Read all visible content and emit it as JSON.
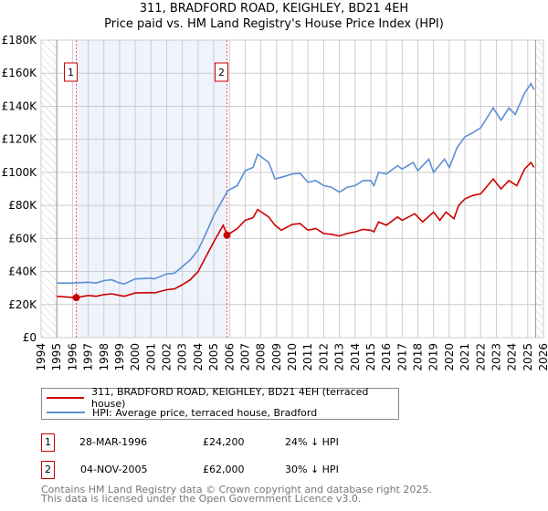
{
  "chart_data": {
    "type": "line",
    "title": "311, BRADFORD ROAD, KEIGHLEY, BD21 4EH",
    "subtitle": "Price paid vs. HM Land Registry's House Price Index (HPI)",
    "xlim": [
      1994,
      2026
    ],
    "ylim": [
      0,
      180000
    ],
    "y_ticks": [
      {
        "v": 0,
        "label": "£0"
      },
      {
        "v": 20000,
        "label": "£20K"
      },
      {
        "v": 40000,
        "label": "£40K"
      },
      {
        "v": 60000,
        "label": "£60K"
      },
      {
        "v": 80000,
        "label": "£80K"
      },
      {
        "v": 100000,
        "label": "£100K"
      },
      {
        "v": 120000,
        "label": "£120K"
      },
      {
        "v": 140000,
        "label": "£140K"
      },
      {
        "v": 160000,
        "label": "£160K"
      },
      {
        "v": 180000,
        "label": "£180K"
      }
    ],
    "x_ticks": [
      "1994",
      "1995",
      "1996",
      "1997",
      "1998",
      "1999",
      "2000",
      "2001",
      "2002",
      "2003",
      "2004",
      "2005",
      "2006",
      "2007",
      "2008",
      "2009",
      "2010",
      "2011",
      "2012",
      "2013",
      "2014",
      "2015",
      "2016",
      "2017",
      "2018",
      "2019",
      "2020",
      "2021",
      "2022",
      "2023",
      "2024",
      "2025",
      "2026"
    ],
    "grid": true,
    "series": [
      {
        "name": "311, BRADFORD ROAD, KEIGHLEY, BD21 4EH (terraced house)",
        "color": "#cc0000",
        "x": [
          1995,
          1996.2,
          1997,
          1997.5,
          1998,
          1998.5,
          1999,
          1999.3,
          2000,
          2001,
          2001.2,
          2002,
          2002.5,
          2003,
          2003.5,
          2004,
          2004.5,
          2005,
          2005.6,
          2005.85,
          2006.5,
          2007,
          2007.5,
          2007.8,
          2008.5,
          2008.9,
          2009.3,
          2010,
          2010.5,
          2011,
          2011.5,
          2012,
          2012.5,
          2013,
          2013.5,
          2014,
          2014.5,
          2015,
          2015.2,
          2015.5,
          2016,
          2016.7,
          2017,
          2017.8,
          2018.3,
          2019,
          2019.4,
          2019.8,
          2020.3,
          2020.6,
          2021,
          2021.5,
          2022,
          2022.8,
          2023.3,
          2023.8,
          2024.3,
          2024.8,
          2025.2,
          2025.4
        ],
        "y": [
          25000,
          24200,
          25500,
          25000,
          26000,
          26500,
          25500,
          25000,
          27000,
          27200,
          27000,
          29000,
          29500,
          32000,
          35000,
          40000,
          49000,
          58000,
          68000,
          62000,
          66000,
          71000,
          72500,
          77500,
          73000,
          68000,
          65000,
          68500,
          69000,
          65000,
          66000,
          63000,
          62500,
          61500,
          63000,
          64000,
          65500,
          65000,
          64000,
          70000,
          68000,
          73000,
          71000,
          75000,
          70000,
          76000,
          71000,
          76000,
          72000,
          80000,
          84000,
          86000,
          87000,
          96000,
          90000,
          95000,
          92000,
          102000,
          106000,
          103000
        ]
      },
      {
        "name": "HPI: Average price, terraced house, Bradford",
        "color": "#5b8fd6",
        "x": [
          1995,
          1996,
          1997,
          1997.5,
          1998,
          1998.5,
          1999,
          1999.3,
          2000,
          2001,
          2001.2,
          2002,
          2002.5,
          2003,
          2003.5,
          2004,
          2004.5,
          2005,
          2005.9,
          2006.5,
          2007,
          2007.5,
          2007.8,
          2008.5,
          2008.9,
          2009.3,
          2010,
          2010.5,
          2011,
          2011.5,
          2012,
          2012.5,
          2013,
          2013.5,
          2014,
          2014.5,
          2015,
          2015.2,
          2015.5,
          2016,
          2016.7,
          2017,
          2017.7,
          2018,
          2018.7,
          2019,
          2019.7,
          2020,
          2020.5,
          2021,
          2021.5,
          2022,
          2022.8,
          2023.3,
          2023.8,
          2024.2,
          2024.8,
          2025.2,
          2025.4
        ],
        "y": [
          33000,
          33000,
          33500,
          33000,
          34500,
          35000,
          33000,
          32500,
          35500,
          36000,
          35500,
          38500,
          39000,
          43000,
          47000,
          53000,
          63000,
          74000,
          89000,
          92000,
          101000,
          103000,
          111000,
          106000,
          96000,
          97000,
          99000,
          99500,
          94000,
          95000,
          92000,
          91000,
          88000,
          91000,
          92000,
          95000,
          95000,
          92000,
          100000,
          99000,
          104000,
          102000,
          106000,
          101000,
          108000,
          100000,
          108000,
          103000,
          115000,
          121500,
          124000,
          127000,
          139000,
          131600,
          139000,
          135000,
          148000,
          153700,
          150000
        ]
      }
    ],
    "sales": [
      {
        "label": "1",
        "x": 1996.24,
        "price": 24200,
        "date": "28-MAR-1996",
        "price_text": "£24,200",
        "delta": "24% ↓ HPI"
      },
      {
        "label": "2",
        "x": 2005.84,
        "price": 62000,
        "date": "04-NOV-2005",
        "price_text": "£62,000",
        "delta": "30% ↓ HPI"
      }
    ],
    "legend": "bottom"
  },
  "footer": [
    "Contains HM Land Registry data © Crown copyright and database right 2025.",
    "This data is licensed under the Open Government Licence v3.0."
  ]
}
